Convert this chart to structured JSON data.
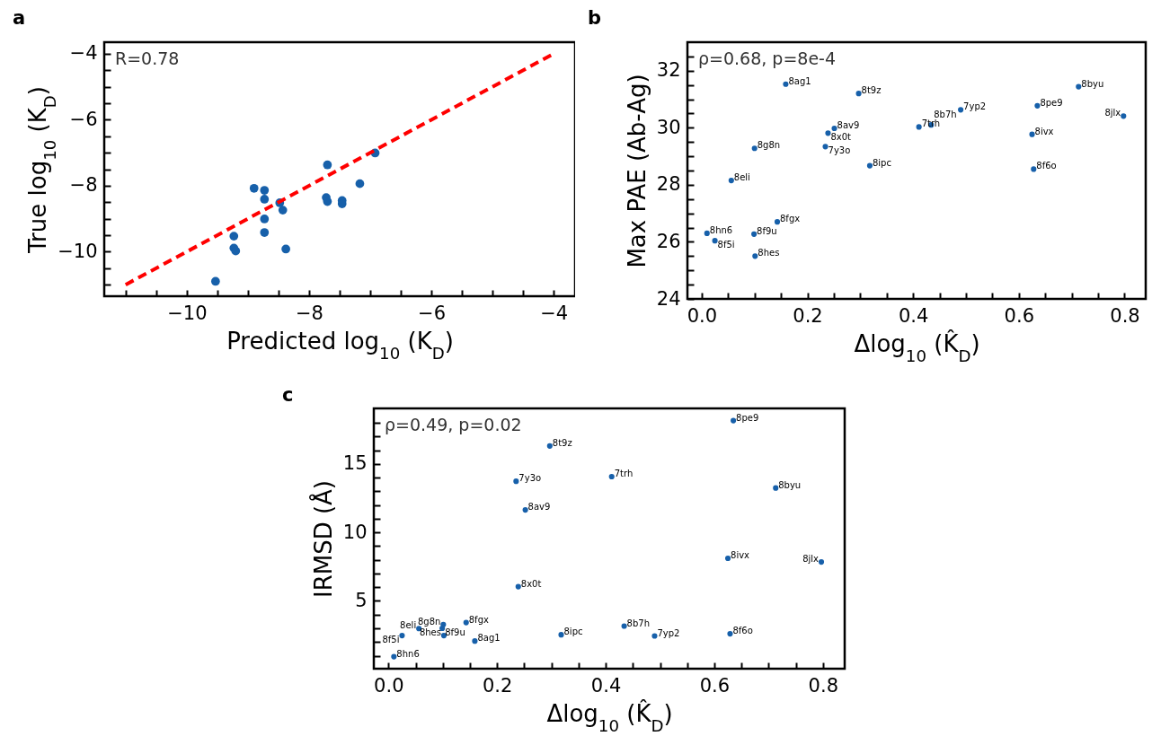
{
  "chart_data": [
    {
      "type": "scatter",
      "title": "a",
      "xlabel": "Predicted log$_{10}$ (K$_{D}$)",
      "ylabel": "True log$_{10}$ (K$_{D}$)",
      "xlim": [
        -11.35,
        -3.65
      ],
      "ylim": [
        -11.35,
        -3.65
      ],
      "xticks": [
        {
          "value": -11,
          "label": null
        },
        {
          "value": -10.5,
          "label": null
        },
        -10,
        {
          "value": -9.5,
          "label": null
        },
        {
          "value": -9,
          "label": null
        },
        {
          "value": -8.5,
          "label": null
        },
        -8,
        {
          "value": -7.5,
          "label": null
        },
        {
          "value": -7,
          "label": null
        },
        {
          "value": -6.5,
          "label": null
        },
        -6,
        {
          "value": -5.5,
          "label": null
        },
        {
          "value": -5,
          "label": null
        },
        {
          "value": -4.5,
          "label": null
        },
        -4
      ],
      "yticks": [
        {
          "value": -11,
          "label": null
        },
        {
          "value": -10.5,
          "label": null
        },
        -10,
        {
          "value": -9.5,
          "label": null
        },
        {
          "value": -9,
          "label": null
        },
        {
          "value": -8.5,
          "label": null
        },
        -8,
        {
          "value": -7.5,
          "label": null
        },
        {
          "value": -7,
          "label": null
        },
        {
          "value": -6.5,
          "label": null
        },
        -6,
        {
          "value": -5.5,
          "label": null
        },
        {
          "value": -5,
          "label": null
        },
        {
          "value": -4.5,
          "label": null
        },
        -4
      ],
      "series": [
        {
          "type": "scatter",
          "marker": "circle",
          "color": "#1760aa",
          "x": [
            -9.53,
            -9.23,
            -9.23,
            -9.2,
            -8.9,
            -8.73,
            -8.73,
            -8.73,
            -8.73,
            -8.48,
            -8.43,
            -8.38,
            -7.7,
            -7.72,
            -7.7,
            -7.46,
            -7.46,
            -7.17,
            -6.92
          ],
          "values": [
            -10.9,
            -9.53,
            -9.89,
            -9.98,
            -8.08,
            -8.14,
            -8.41,
            -9.01,
            -9.42,
            -8.52,
            -8.74,
            -9.92,
            -7.37,
            -8.36,
            -8.48,
            -8.45,
            -8.55,
            -7.94,
            -7.01
          ]
        },
        {
          "type": "line",
          "color": "#ff0000",
          "line_style": "dashed",
          "x": [
            -11,
            -4
          ],
          "values": [
            -11,
            -4
          ]
        }
      ],
      "annotations": [
        "R=0.78"
      ]
    },
    {
      "type": "scatter",
      "title": "b",
      "xlabel": "Δlog$_{10}$ (K̂$_{D}$)",
      "ylabel": "Max PAE (Ab-Ag)",
      "xlim": [
        -0.027,
        0.84
      ],
      "ylim": [
        24,
        33
      ],
      "xticks": [
        {
          "value": 0,
          "label": "0.0"
        },
        {
          "value": 0.05,
          "label": null
        },
        {
          "value": 0.1,
          "label": null
        },
        {
          "value": 0.15,
          "label": null
        },
        {
          "value": 0.2,
          "label": "0.2"
        },
        {
          "value": 0.25,
          "label": null
        },
        {
          "value": 0.3,
          "label": null
        },
        {
          "value": 0.35,
          "label": null
        },
        {
          "value": 0.4,
          "label": "0.4"
        },
        {
          "value": 0.45,
          "label": null
        },
        {
          "value": 0.5,
          "label": null
        },
        {
          "value": 0.55,
          "label": null
        },
        {
          "value": 0.6,
          "label": "0.6"
        },
        {
          "value": 0.65,
          "label": null
        },
        {
          "value": 0.7,
          "label": null
        },
        {
          "value": 0.75,
          "label": null
        },
        {
          "value": 0.8,
          "label": "0.8"
        }
      ],
      "yticks": [
        24,
        {
          "value": 24.5,
          "label": null
        },
        {
          "value": 25,
          "label": null
        },
        {
          "value": 25.5,
          "label": null
        },
        26,
        {
          "value": 26.5,
          "label": null
        },
        {
          "value": 27,
          "label": null
        },
        {
          "value": 27.5,
          "label": null
        },
        28,
        {
          "value": 28.5,
          "label": null
        },
        {
          "value": 29,
          "label": null
        },
        {
          "value": 29.5,
          "label": null
        },
        30,
        {
          "value": 30.5,
          "label": null
        },
        {
          "value": 31,
          "label": null
        },
        {
          "value": 31.5,
          "label": null
        },
        32,
        {
          "value": 32.5,
          "label": null
        }
      ],
      "series": [
        {
          "type": "scatter",
          "marker": "circle",
          "color": "#1760aa",
          "x": [
            0.159,
            0.297,
            0.713,
            0.635,
            0.49,
            0.798,
            0.251,
            0.239,
            0.411,
            0.434,
            0.625,
            0.1,
            0.234,
            0.318,
            0.628,
            0.056,
            0.143,
            0.01,
            0.099,
            0.025,
            0.101
          ],
          "values": [
            31.53,
            31.2,
            31.44,
            30.77,
            30.63,
            30.41,
            29.98,
            29.81,
            30.03,
            30.1,
            29.77,
            29.28,
            29.34,
            28.67,
            28.55,
            28.15,
            26.7,
            26.3,
            26.27,
            26.04,
            25.5
          ]
        }
      ],
      "annotations": [
        "ρ=0.68, p=8e-4",
        {
          "text": "8ag1",
          "x": 0.159,
          "y": 31.53
        },
        {
          "text": "8t9z",
          "x": 0.297,
          "y": 31.2
        },
        {
          "text": "8byu",
          "x": 0.713,
          "y": 31.44
        },
        {
          "text": "8pe9",
          "x": 0.635,
          "y": 30.77
        },
        {
          "text": "7yp2",
          "x": 0.49,
          "y": 30.63
        },
        {
          "text": "8jlx",
          "x": 0.798,
          "y": 30.41
        },
        {
          "text": "8av9",
          "x": 0.251,
          "y": 29.98
        },
        {
          "text": "8x0t",
          "x": 0.239,
          "y": 29.81
        },
        {
          "text": "7trh",
          "x": 0.411,
          "y": 30.03
        },
        {
          "text": "8b7h",
          "x": 0.434,
          "y": 30.1
        },
        {
          "text": "8ivx",
          "x": 0.625,
          "y": 29.77
        },
        {
          "text": "8g8n",
          "x": 0.1,
          "y": 29.28
        },
        {
          "text": "7y3o",
          "x": 0.234,
          "y": 29.34
        },
        {
          "text": "8ipc",
          "x": 0.318,
          "y": 28.67
        },
        {
          "text": "8f6o",
          "x": 0.628,
          "y": 28.55
        },
        {
          "text": "8eli",
          "x": 0.056,
          "y": 28.15
        },
        {
          "text": "8fgx",
          "x": 0.143,
          "y": 26.7
        },
        {
          "text": "8hn6",
          "x": 0.01,
          "y": 26.3
        },
        {
          "text": "8f9u",
          "x": 0.099,
          "y": 26.27
        },
        {
          "text": "8f5i",
          "x": 0.025,
          "y": 26.04
        },
        {
          "text": "8hes",
          "x": 0.101,
          "y": 25.5
        }
      ]
    },
    {
      "type": "scatter",
      "title": "c",
      "xlabel": "Δlog$_{10}$ (K̂$_{D}$)",
      "ylabel": "IRMSD (Å)",
      "xlim": [
        -0.027,
        0.84
      ],
      "ylim": [
        0.05,
        19.05
      ],
      "xticks": [
        {
          "value": 0,
          "label": "0.0"
        },
        {
          "value": 0.05,
          "label": null
        },
        {
          "value": 0.1,
          "label": null
        },
        {
          "value": 0.15,
          "label": null
        },
        {
          "value": 0.2,
          "label": "0.2"
        },
        {
          "value": 0.25,
          "label": null
        },
        {
          "value": 0.3,
          "label": null
        },
        {
          "value": 0.35,
          "label": null
        },
        {
          "value": 0.4,
          "label": "0.4"
        },
        {
          "value": 0.45,
          "label": null
        },
        {
          "value": 0.5,
          "label": null
        },
        {
          "value": 0.55,
          "label": null
        },
        {
          "value": 0.6,
          "label": "0.6"
        },
        {
          "value": 0.65,
          "label": null
        },
        {
          "value": 0.7,
          "label": null
        },
        {
          "value": 0.75,
          "label": null
        },
        {
          "value": 0.8,
          "label": "0.8"
        }
      ],
      "yticks": [
        {
          "value": 1,
          "label": null
        },
        {
          "value": 2,
          "label": null
        },
        {
          "value": 3,
          "label": null
        },
        {
          "value": 4,
          "label": null
        },
        5,
        {
          "value": 6,
          "label": null
        },
        {
          "value": 7,
          "label": null
        },
        {
          "value": 8,
          "label": null
        },
        {
          "value": 9,
          "label": null
        },
        10,
        {
          "value": 11,
          "label": null
        },
        {
          "value": 12,
          "label": null
        },
        {
          "value": 13,
          "label": null
        },
        {
          "value": 14,
          "label": null
        },
        15,
        {
          "value": 16,
          "label": null
        },
        {
          "value": 17,
          "label": null
        },
        {
          "value": 18,
          "label": null
        }
      ],
      "series": [
        {
          "type": "scatter",
          "marker": "circle",
          "color": "#1760aa",
          "x": [
            0.635,
            0.297,
            0.235,
            0.411,
            0.713,
            0.252,
            0.625,
            0.797,
            0.239,
            0.434,
            0.143,
            0.101,
            0.099,
            0.056,
            0.102,
            0.025,
            0.318,
            0.49,
            0.629,
            0.159,
            0.01
          ],
          "values": [
            18.16,
            16.31,
            13.73,
            14.07,
            13.24,
            11.64,
            8.11,
            7.84,
            6.04,
            3.16,
            3.42,
            3.27,
            3.0,
            2.98,
            2.47,
            2.47,
            2.53,
            2.44,
            2.6,
            2.07,
            0.93
          ]
        }
      ],
      "annotations": [
        "ρ=0.49, p=0.02",
        {
          "text": "8pe9",
          "x": 0.635,
          "y": 18.16
        },
        {
          "text": "8t9z",
          "x": 0.297,
          "y": 16.31
        },
        {
          "text": "7y3o",
          "x": 0.235,
          "y": 13.73
        },
        {
          "text": "7trh",
          "x": 0.411,
          "y": 14.07
        },
        {
          "text": "8byu",
          "x": 0.713,
          "y": 13.24
        },
        {
          "text": "8av9",
          "x": 0.252,
          "y": 11.64
        },
        {
          "text": "8ivx",
          "x": 0.625,
          "y": 8.11
        },
        {
          "text": "8jlx",
          "x": 0.797,
          "y": 7.84
        },
        {
          "text": "8x0t",
          "x": 0.239,
          "y": 6.04
        },
        {
          "text": "8b7h",
          "x": 0.434,
          "y": 3.16
        },
        {
          "text": "8fgx",
          "x": 0.143,
          "y": 3.42
        },
        {
          "text": "8g8n",
          "x": 0.101,
          "y": 3.27
        },
        {
          "text": "8f9u",
          "x": 0.099,
          "y": 3.0
        },
        {
          "text": "8eli",
          "x": 0.056,
          "y": 2.98
        },
        {
          "text": "8hes",
          "x": 0.102,
          "y": 2.47
        },
        {
          "text": "8f5i",
          "x": 0.025,
          "y": 2.47
        },
        {
          "text": "8ipc",
          "x": 0.318,
          "y": 2.53
        },
        {
          "text": "7yp2",
          "x": 0.49,
          "y": 2.44
        },
        {
          "text": "8f6o",
          "x": 0.629,
          "y": 2.6
        },
        {
          "text": "8ag1",
          "x": 0.159,
          "y": 2.07
        },
        {
          "text": "8hn6",
          "x": 0.01,
          "y": 0.93
        }
      ]
    }
  ]
}
